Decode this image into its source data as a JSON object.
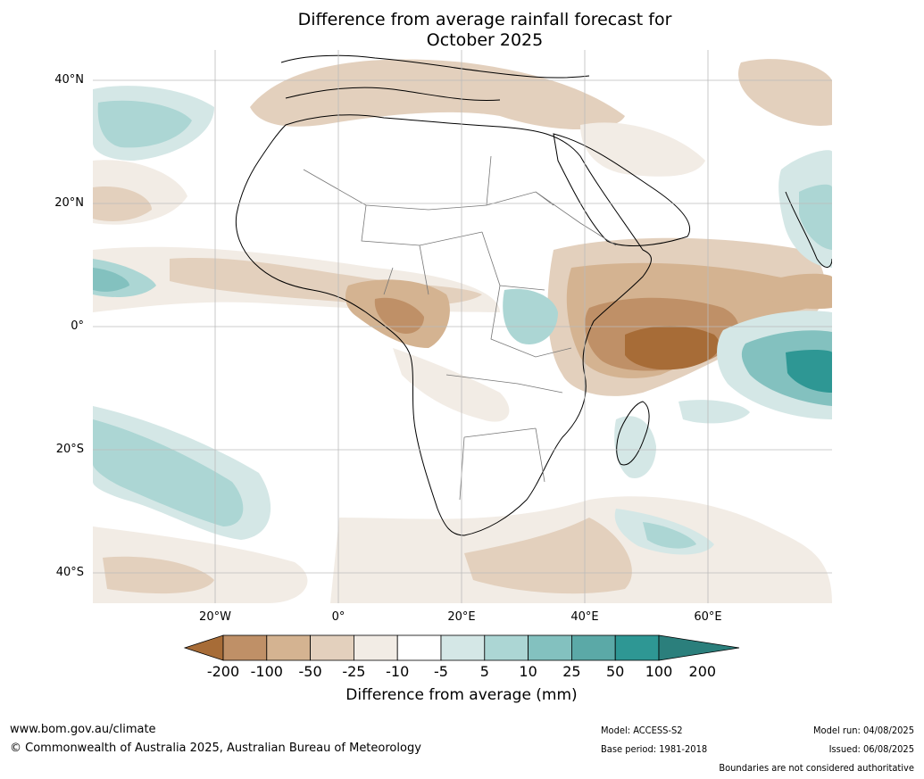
{
  "title": {
    "line1": "Difference from average rainfall forecast for",
    "line2": "October 2025"
  },
  "axes": {
    "lat_labels": [
      "40°N",
      "20°N",
      "0°",
      "20°S",
      "40°S"
    ],
    "lon_labels": [
      "20°W",
      "0°",
      "20°E",
      "40°E",
      "60°E"
    ]
  },
  "legend": {
    "title": "Difference from average (mm)",
    "ticks": [
      "-200",
      "-100",
      "-50",
      "-25",
      "-10",
      "-5",
      "5",
      "10",
      "25",
      "50",
      "100",
      "200"
    ],
    "colors": [
      "#a76c37",
      "#bf9067",
      "#d4b391",
      "#e3d0bd",
      "#f2ece5",
      "#ffffff",
      "#d4e7e6",
      "#acd6d4",
      "#83c1bf",
      "#5ba9a7",
      "#2e9794",
      "#2b7f7c"
    ]
  },
  "footer": {
    "website": "www.bom.gov.au/climate",
    "copyright": "© Commonwealth of Australia 2025, Australian Bureau of Meteorology",
    "model": "Model: ACCESS-S2",
    "base_period": "Base period: 1981-2018",
    "model_run": "Model run: 04/08/2025",
    "issued": "Issued: 06/08/2025",
    "disclaimer": "Boundaries are not considered authoritative"
  }
}
